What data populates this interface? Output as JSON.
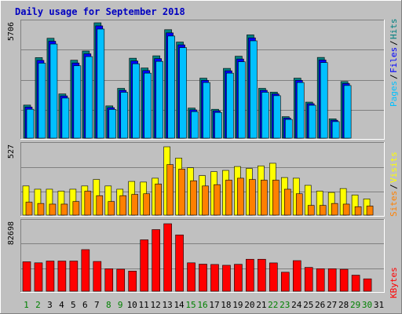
{
  "chart_data": [
    {
      "type": "bar",
      "title": "Daily usage for September 2018",
      "categories": [
        "1",
        "2",
        "3",
        "4",
        "5",
        "6",
        "7",
        "8",
        "9",
        "10",
        "11",
        "12",
        "13",
        "14",
        "15",
        "16",
        "17",
        "18",
        "19",
        "20",
        "21",
        "22",
        "23",
        "24",
        "25",
        "26",
        "27",
        "28",
        "29",
        "30",
        "31"
      ],
      "weekend_categories": [
        "1",
        "2",
        "8",
        "9",
        "15",
        "16",
        "22",
        "23",
        "29",
        "30"
      ],
      "ymax_label": "5706",
      "ylim": [
        0,
        5706
      ],
      "series": [
        {
          "name": "Hits",
          "color": "#008080",
          "values": [
            1580,
            3960,
            4930,
            2140,
            3830,
            4290,
            5706,
            1540,
            2420,
            3930,
            3440,
            4050,
            5360,
            4740,
            1430,
            2930,
            1370,
            3420,
            4030,
            5100,
            2420,
            2230,
            1000,
            2930,
            1730,
            3970,
            890,
            2760,
            0,
            0,
            0
          ]
        },
        {
          "name": "Files",
          "color": "#0000ff",
          "values": [
            1520,
            3860,
            4820,
            2080,
            3730,
            4190,
            5590,
            1490,
            2360,
            3830,
            3350,
            3950,
            5240,
            4640,
            1380,
            2860,
            1330,
            3340,
            3930,
            4990,
            2360,
            2180,
            970,
            2860,
            1690,
            3880,
            860,
            2700,
            0,
            0,
            0
          ]
        },
        {
          "name": "Pages",
          "color": "#00c0ff",
          "values": [
            1450,
            3760,
            4720,
            2010,
            3630,
            4090,
            5470,
            1440,
            2300,
            3730,
            3260,
            3850,
            5120,
            4540,
            1330,
            2790,
            1290,
            3260,
            3830,
            4880,
            2300,
            2130,
            940,
            2790,
            1650,
            3790,
            830,
            2640,
            0,
            0,
            0
          ]
        }
      ]
    },
    {
      "type": "bar",
      "ymax_label": "527",
      "ylim": [
        0,
        527
      ],
      "series": [
        {
          "name": "Visits",
          "color": "#ffff00",
          "values": [
            225,
            200,
            200,
            185,
            200,
            225,
            275,
            225,
            200,
            260,
            255,
            285,
            527,
            440,
            365,
            305,
            335,
            345,
            375,
            360,
            380,
            400,
            290,
            285,
            230,
            185,
            175,
            205,
            155,
            125,
            0
          ]
        },
        {
          "name": "Sites",
          "color": "#ff8000",
          "values": [
            100,
            90,
            85,
            85,
            105,
            185,
            150,
            105,
            150,
            160,
            165,
            240,
            390,
            355,
            265,
            225,
            235,
            270,
            285,
            275,
            270,
            270,
            200,
            165,
            75,
            75,
            90,
            85,
            65,
            70,
            0
          ]
        }
      ]
    },
    {
      "type": "bar",
      "ymax_label": "82698",
      "ylim": [
        0,
        82698
      ],
      "series": [
        {
          "name": "KBytes",
          "color": "#ff0000",
          "values": [
            36100,
            34800,
            37000,
            37000,
            37000,
            51000,
            36500,
            27500,
            27000,
            24700,
            63000,
            75500,
            82698,
            69000,
            34800,
            33200,
            32800,
            31800,
            33000,
            39200,
            39200,
            34700,
            23300,
            37500,
            29200,
            27600,
            27600,
            26900,
            19700,
            15200,
            0
          ]
        }
      ]
    }
  ],
  "legend_colors": {
    "separator": "#000000"
  }
}
